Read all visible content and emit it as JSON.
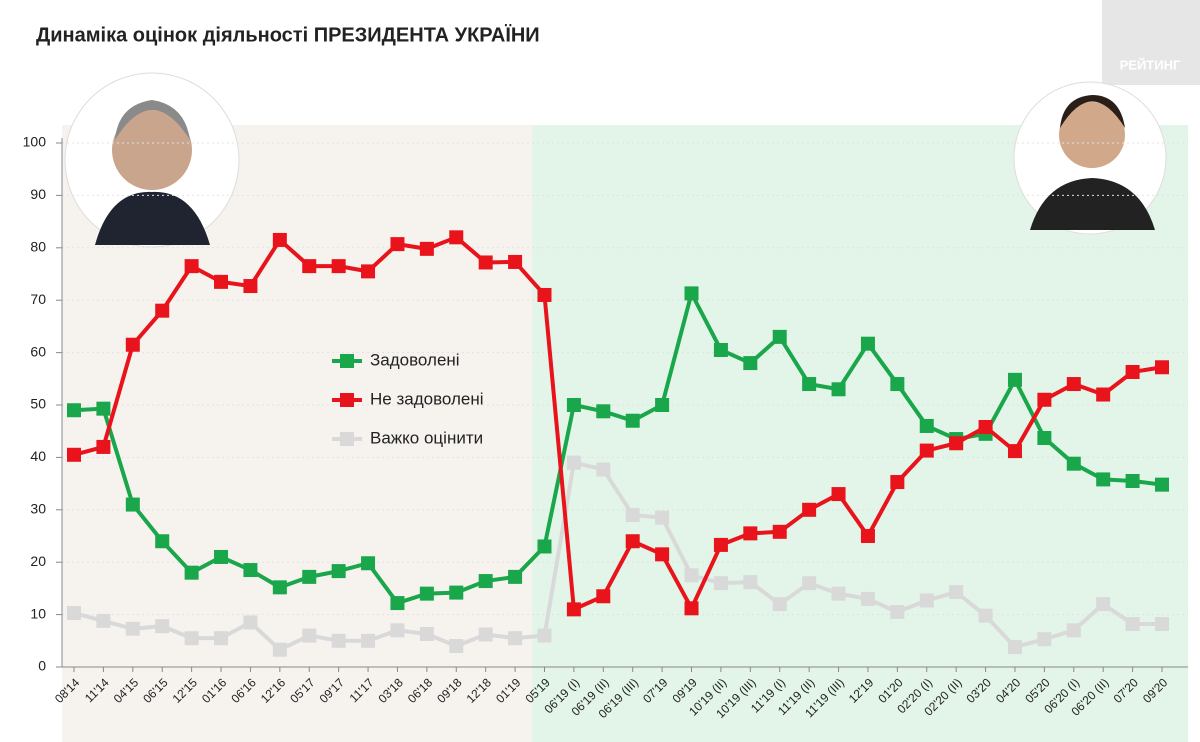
{
  "logo": "РЕЙТИНГ",
  "chart_data": {
    "type": "line",
    "title": "Динаміка оцінок діяльності ПРЕЗИДЕНТА УКРАЇНИ",
    "categories": [
      "08'14",
      "11'14",
      "04'15",
      "06'15",
      "12'15",
      "01'16",
      "06'16",
      "12'16",
      "05'17",
      "09'17",
      "11'17",
      "03'18",
      "06'18",
      "09'18",
      "12'18",
      "01'19",
      "05'19",
      "06'19 (I)",
      "06'19 (II)",
      "06'19 (III)",
      "07'19",
      "09'19",
      "10'19 (II)",
      "10'19 (III)",
      "11'19 (I)",
      "11'19 (II)",
      "11'19 (III)",
      "12'19",
      "01'20",
      "02'20 (I)",
      "02'20 (II)",
      "03'20",
      "04'20",
      "05'20",
      "06'20 (I)",
      "06'20 (II)",
      "07'20",
      "09'20"
    ],
    "series": [
      {
        "name": "Задоволені",
        "color": "#1aa64a",
        "values": [
          49,
          49.3,
          31,
          24,
          18,
          21,
          18.5,
          15.2,
          17.2,
          18.3,
          19.8,
          12.2,
          14,
          14.2,
          16.4,
          17.2,
          23,
          50,
          48.8,
          47,
          50,
          71.3,
          60.5,
          58,
          63,
          54,
          53,
          61.7,
          54,
          46,
          43.5,
          44.5,
          54.8,
          43.7,
          38.8,
          35.8,
          35.5,
          34.8
        ]
      },
      {
        "name": "Не задоволені",
        "color": "#e8131b",
        "values": [
          40.5,
          42,
          61.5,
          68,
          76.5,
          73.5,
          72.7,
          81.5,
          76.5,
          76.5,
          75.5,
          80.7,
          79.8,
          82,
          77.2,
          77.3,
          71,
          11,
          13.5,
          24,
          21.5,
          11.2,
          23.3,
          25.5,
          25.8,
          30,
          33,
          25,
          35.3,
          41.3,
          42.7,
          45.8,
          41.2,
          51,
          54,
          52,
          56.3,
          57.2
        ]
      },
      {
        "name": "Важко оцінити",
        "color": "#d9d9d9",
        "values": [
          10.3,
          8.8,
          7.3,
          7.8,
          5.5,
          5.5,
          8.5,
          3.3,
          6,
          5,
          5,
          7,
          6.3,
          4,
          6.2,
          5.5,
          6,
          39,
          37.7,
          29,
          28.5,
          17.5,
          16,
          16.2,
          12,
          16,
          14,
          13,
          10.5,
          12.7,
          14.3,
          9.8,
          3.8,
          5.3,
          7,
          12,
          8.2,
          8.2
        ]
      }
    ],
    "ylim": [
      0,
      100
    ],
    "yticks": [
      0,
      10,
      20,
      30,
      40,
      50,
      60,
      70,
      80,
      90,
      100
    ],
    "grid": true
  }
}
